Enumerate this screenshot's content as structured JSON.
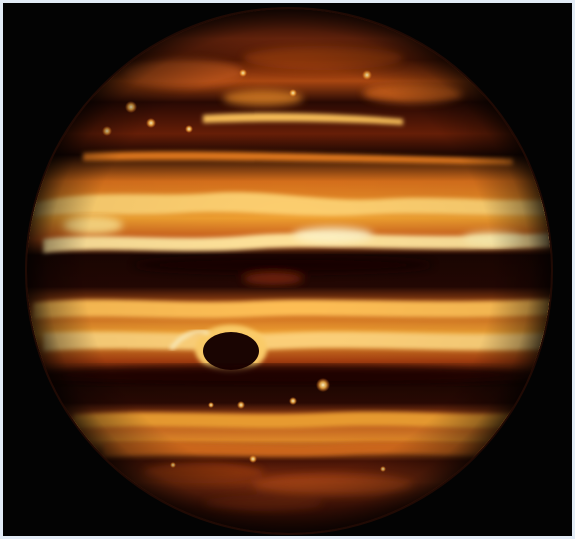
{
  "image": {
    "subject": "Jupiter",
    "background_color": "#030303",
    "border_color": "#e3ecf6",
    "palette": {
      "dark_band": "#1a0502",
      "mid_band": "#7a2308",
      "bright_band": "#f0a030",
      "hot_spot": "#fff4c8",
      "limb": "#3a1006"
    }
  }
}
